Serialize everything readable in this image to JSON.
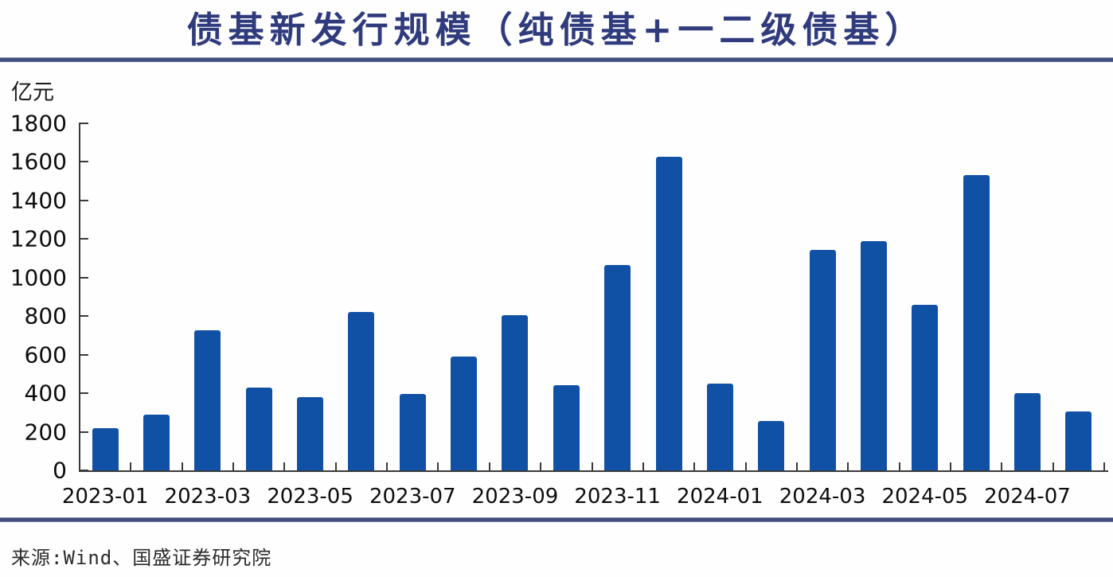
{
  "header": {
    "title": "债基新发行规模（纯债基+一二级债基）"
  },
  "footer": {
    "source": "来源:Wind、国盛证券研究院"
  },
  "chart_data": {
    "type": "bar",
    "title": "债基新发行规模（纯债基+一二级债基）",
    "ylabel": "亿元",
    "xlabel": "",
    "categories": [
      "2023-01",
      "2023-02",
      "2023-03",
      "2023-04",
      "2023-05",
      "2023-06",
      "2023-07",
      "2023-08",
      "2023-09",
      "2023-10",
      "2023-11",
      "2023-12",
      "2024-01",
      "2024-02",
      "2024-03",
      "2024-04",
      "2024-05",
      "2024-06",
      "2024-07",
      "2024-08"
    ],
    "values": [
      220,
      290,
      725,
      430,
      380,
      820,
      395,
      590,
      805,
      440,
      1065,
      1625,
      450,
      255,
      1145,
      1190,
      860,
      1530,
      400,
      305
    ],
    "x_axis_labeled_categories": [
      "2023-01",
      "2023-03",
      "2023-05",
      "2023-07",
      "2023-09",
      "2023-11",
      "2024-01",
      "2024-03",
      "2024-05",
      "2024-07"
    ],
    "y_ticks": [
      0,
      200,
      400,
      600,
      800,
      1000,
      1200,
      1400,
      1600,
      1800
    ],
    "ylim": [
      0,
      1800
    ],
    "grid": false,
    "legend": "none",
    "colors": {
      "bar": "#1151a5",
      "title": "#2f3b7c",
      "rule": "#424e7e",
      "axis": "#3a3a3a",
      "tick_text": "#0d0d0d"
    }
  }
}
